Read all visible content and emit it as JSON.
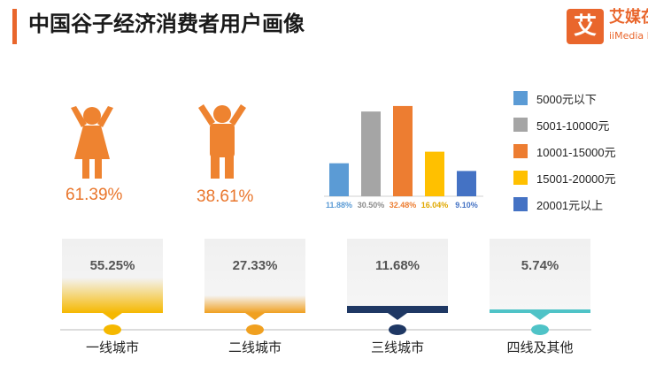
{
  "header": {
    "title": "中国谷子经济消费者用户画像"
  },
  "logo": {
    "mark": "艾",
    "name": "艾媒在",
    "name_en": "iiMedia Re"
  },
  "gender": [
    {
      "icon": "female-person-icon",
      "percent": "61.39%"
    },
    {
      "icon": "male-person-icon",
      "percent": "38.61%"
    }
  ],
  "colors": {
    "accent": "#e9662c",
    "income": [
      "#5b9bd5",
      "#a5a5a5",
      "#ed7d31",
      "#ffc000",
      "#4472c4"
    ],
    "city": [
      "#f5b800",
      "#f0a020",
      "#1f3864",
      "#4fc3c7"
    ]
  },
  "chart_data": {
    "type": "bar",
    "categories": [
      "5000元以下",
      "5001-10000元",
      "10001-15000元",
      "15001-20000元",
      "20001元以上"
    ],
    "values": [
      11.88,
      30.5,
      32.48,
      16.04,
      9.1
    ],
    "value_labels": [
      "11.88%",
      "30.50%",
      "32.48%",
      "16.04%",
      "9.10%"
    ],
    "title": "",
    "xlabel": "",
    "ylabel": "",
    "ylim": [
      0,
      35
    ],
    "grid": false,
    "legend": "right"
  },
  "cities": [
    {
      "name": "一线城市",
      "value": 55.25,
      "label": "55.25%"
    },
    {
      "name": "二线城市",
      "value": 27.33,
      "label": "27.33%"
    },
    {
      "name": "三线城市",
      "value": 11.68,
      "label": "11.68%"
    },
    {
      "name": "四线及其他",
      "value": 5.74,
      "label": "5.74%"
    }
  ]
}
